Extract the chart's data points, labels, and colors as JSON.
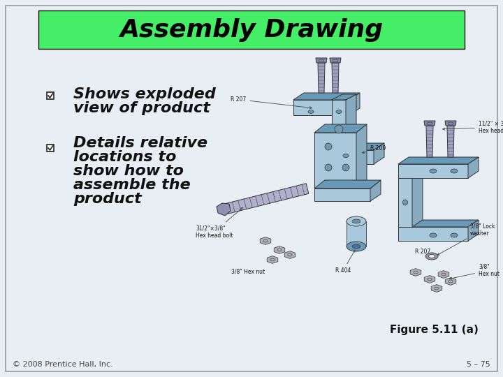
{
  "title": "Assembly Drawing",
  "title_bg_color": "#44EE66",
  "title_text_color": "#000000",
  "slide_bg_color": "#E8EEF4",
  "bullet1_line1": "Shows exploded",
  "bullet1_line2": "view of product",
  "bullet2_line1": "Details relative",
  "bullet2_line2": "locations to",
  "bullet2_line3": "show how to",
  "bullet2_line4": "assemble the",
  "bullet2_line5": "product",
  "figure_caption": "Figure 5.11 (a)",
  "footer_left": "© 2008 Prentice Hall, Inc.",
  "footer_right": "5 – 75",
  "title_font_size": 26,
  "bullet_font_size": 16,
  "figure_caption_font_size": 11,
  "footer_font_size": 8,
  "slide_border_color": "#999999",
  "steel_blue": "#A8C8DC",
  "steel_blue_dark": "#6899B8",
  "steel_blue_side": "#88AABF",
  "line_col": "#333333",
  "label_font_size": 5.5
}
